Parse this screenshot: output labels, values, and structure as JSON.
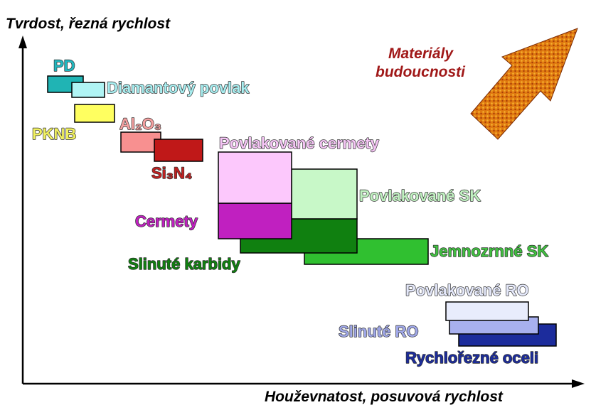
{
  "axes": {
    "y_label": "Tvrdost, řezná rychlost",
    "x_label": "Houževnatost, posuvová rychlost"
  },
  "arrow_label": [
    "Materiály",
    "budoucnosti"
  ],
  "regions": [
    {
      "label": "PD"
    },
    {
      "label": "Diamantový povlak"
    },
    {
      "label": "PKNB"
    },
    {
      "label": "Al₂O₃"
    },
    {
      "label": "Si₃N₄"
    },
    {
      "label": "Jemnozrnné SK"
    },
    {
      "label": "Slinuté karbidy"
    },
    {
      "label": "Povlakované SK"
    },
    {
      "label": "Cermety"
    },
    {
      "label": "Povlakované cermety"
    },
    {
      "label": "Rychlořezné oceli"
    },
    {
      "label": "Slinuté RO"
    },
    {
      "label": "Povlakované RO"
    }
  ]
}
